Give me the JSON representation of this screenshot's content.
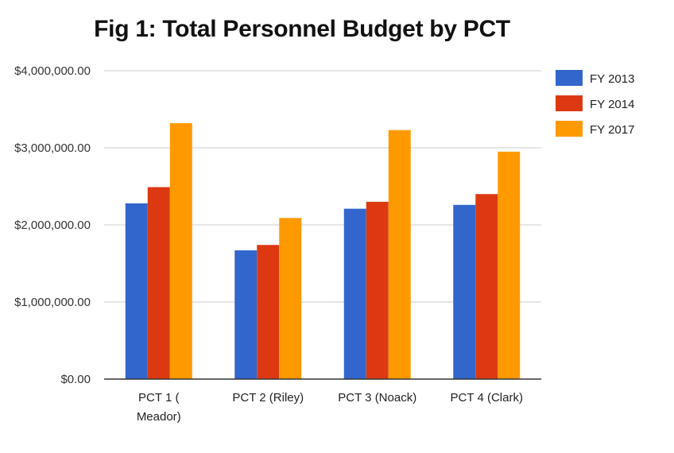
{
  "chart_data": {
    "type": "bar",
    "title": "Fig 1: Total Personnel Budget by PCT",
    "xlabel": "",
    "ylabel": "",
    "ylim": [
      0,
      4000000
    ],
    "yticks": [
      0,
      1000000,
      2000000,
      3000000,
      4000000
    ],
    "ytick_labels": [
      "$0.00",
      "$1,000,000.00",
      "$2,000,000.00",
      "$3,000,000.00",
      "$4,000,000.00"
    ],
    "grid": true,
    "legend_position": "right",
    "categories": [
      "PCT 1 ( Meador)",
      "PCT 2 (Riley)",
      "PCT 3 (Noack)",
      "PCT 4 (Clark)"
    ],
    "category_lines": [
      [
        "PCT 1 (",
        "Meador)"
      ],
      [
        "PCT 2 (Riley)"
      ],
      [
        "PCT 3 (Noack)"
      ],
      [
        "PCT 4 (Clark)"
      ]
    ],
    "series": [
      {
        "name": "FY 2013",
        "color": "#3366cc",
        "values": [
          2280000,
          1670000,
          2210000,
          2260000
        ]
      },
      {
        "name": "FY 2014",
        "color": "#dc3912",
        "values": [
          2490000,
          1740000,
          2300000,
          2400000
        ]
      },
      {
        "name": "FY 2017",
        "color": "#ff9900",
        "values": [
          3320000,
          2090000,
          3230000,
          2950000
        ]
      }
    ]
  }
}
